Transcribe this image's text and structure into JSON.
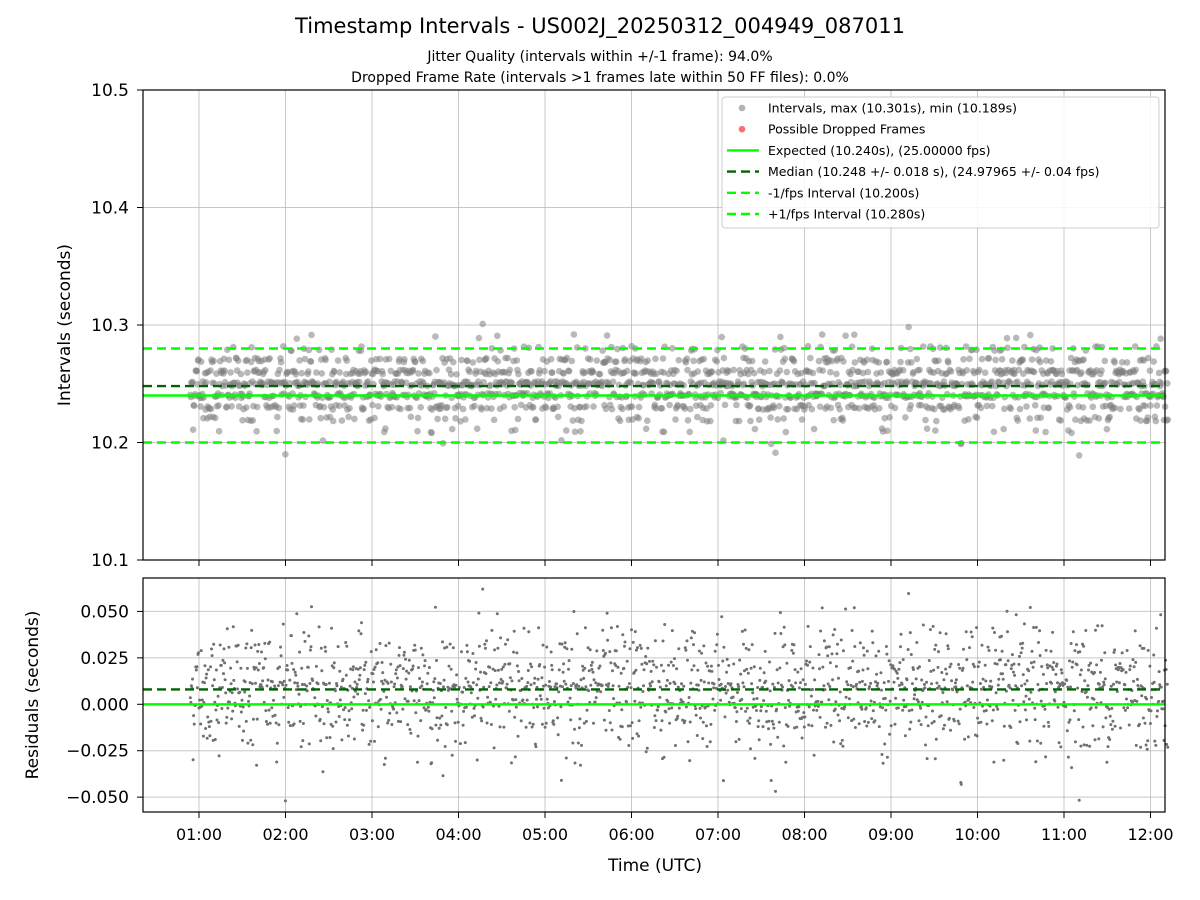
{
  "chart_data": [
    {
      "type": "scatter",
      "title": "Timestamp Intervals - US002J_20250312_004949_087011",
      "subtitle_lines": [
        "Jitter Quality (intervals within +/-1 frame): 94.0%",
        "Dropped Frame Rate (intervals >1 frames late within 50 FF files): 0.0%"
      ],
      "xlabel": "",
      "ylabel": "Intervals (seconds)",
      "xlim_hours": [
        0.33,
        12.2
      ],
      "ylim": [
        10.1,
        10.5
      ],
      "yticks": [
        "10.1",
        "10.2",
        "10.3",
        "10.4",
        "10.5"
      ],
      "grid": true,
      "legend_position": "top-right",
      "series": [
        {
          "name": "Intervals, max (10.301s), min (10.189s)",
          "color": "#808080",
          "marker": "circle",
          "x_range_hours": [
            0.9,
            12.2
          ],
          "y_min": 10.189,
          "y_max": 10.301,
          "median": 10.248,
          "std": 0.018
        },
        {
          "name": "Possible Dropped Frames",
          "color": "#ff5555",
          "marker": "circle",
          "count": 0
        },
        {
          "name": "Expected (10.240s), (25.00000 fps)",
          "color": "#00ff00",
          "style": "solid",
          "y": 10.24
        },
        {
          "name": "Median (10.248 +/- 0.018 s), (24.97965 +/- 0.04 fps)",
          "color": "#006400",
          "style": "dashed",
          "y": 10.248
        },
        {
          "name": "-1/fps Interval (10.200s)",
          "color": "#00ff00",
          "style": "dashed",
          "y": 10.2
        },
        {
          "name": "+1/fps Interval (10.280s)",
          "color": "#00ff00",
          "style": "dashed",
          "y": 10.28
        }
      ]
    },
    {
      "type": "scatter",
      "xlabel": "Time (UTC)",
      "ylabel": "Residuals (seconds)",
      "xlim_hours": [
        0.33,
        12.2
      ],
      "ylim": [
        -0.058,
        0.068
      ],
      "yticks": [
        "−0.050",
        "−0.025",
        "0.000",
        "0.025",
        "0.050"
      ],
      "xticks": [
        "01:00",
        "02:00",
        "03:00",
        "04:00",
        "05:00",
        "06:00",
        "07:00",
        "08:00",
        "09:00",
        "10:00",
        "11:00",
        "12:00"
      ],
      "grid": true,
      "series": [
        {
          "color": "#707070",
          "marker": "dot",
          "x_range_hours": [
            0.9,
            12.2
          ],
          "y_min": -0.052,
          "y_max": 0.062
        },
        {
          "color": "#00ff00",
          "style": "solid",
          "y": 0.0
        },
        {
          "color": "#006400",
          "style": "dashed",
          "y": 0.008
        }
      ]
    }
  ]
}
